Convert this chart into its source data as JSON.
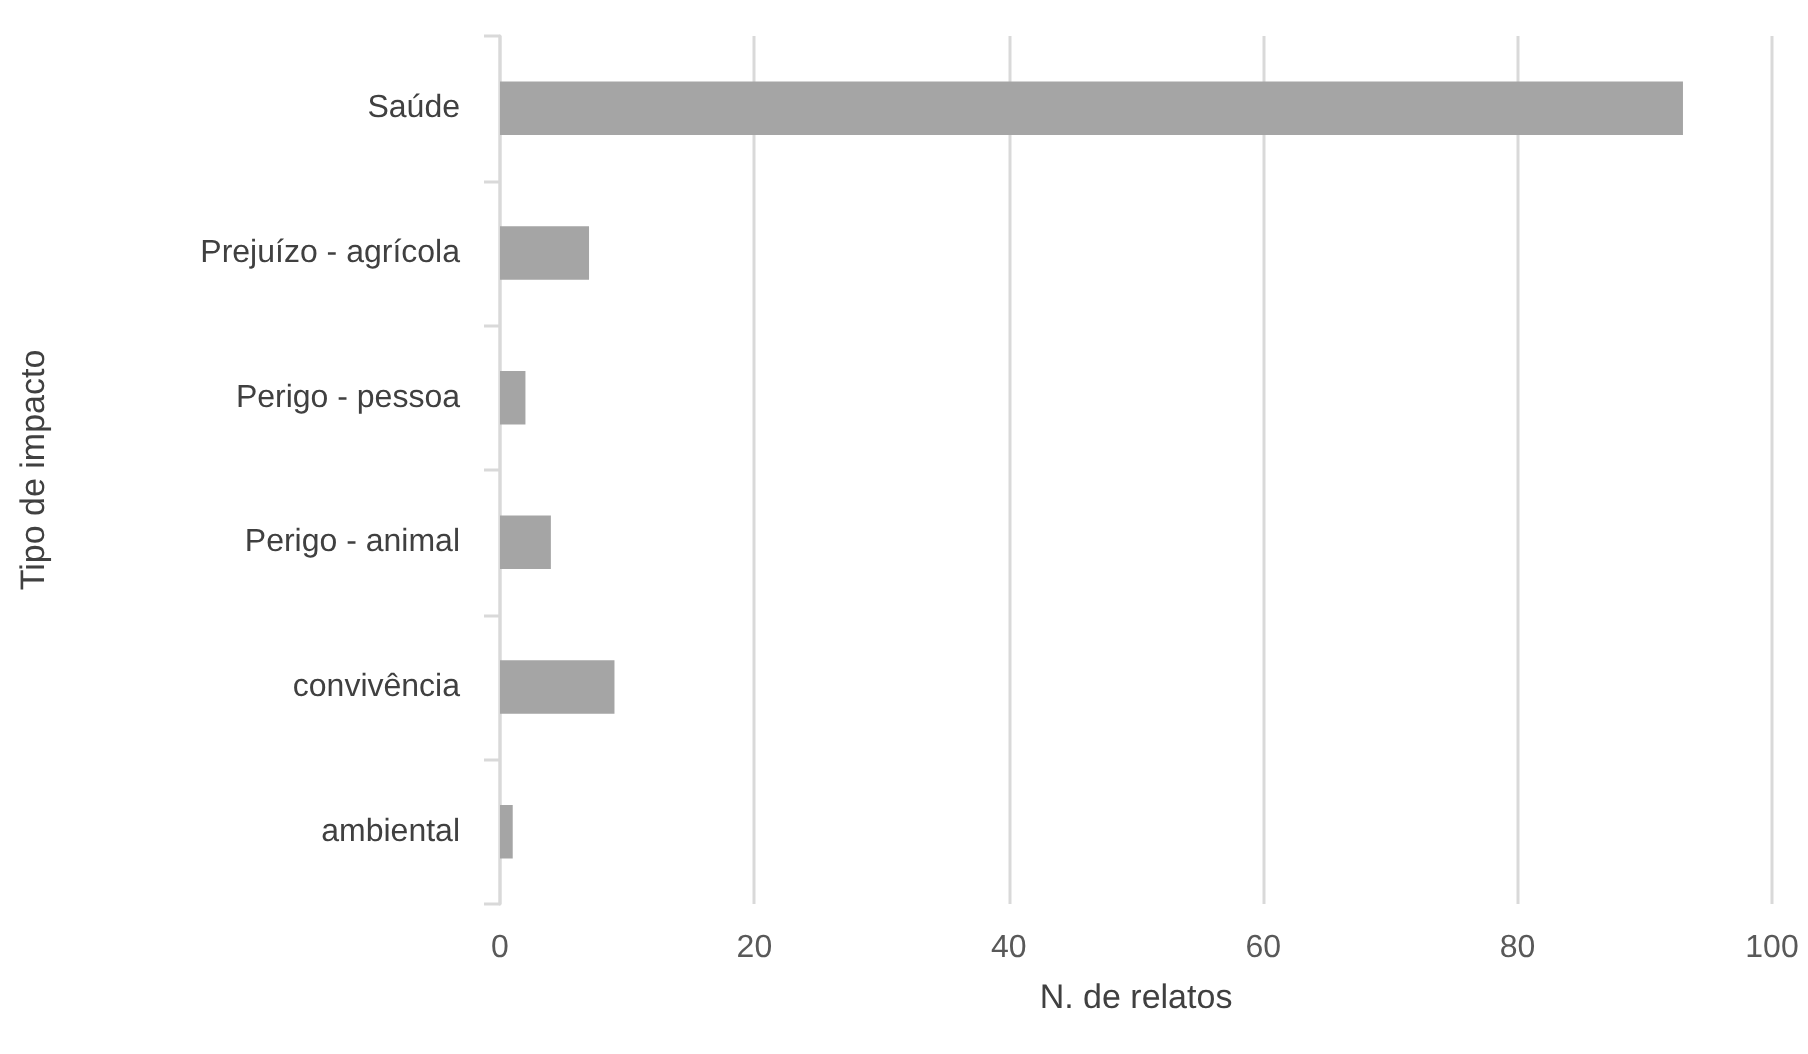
{
  "chart_data": {
    "type": "bar",
    "orientation": "horizontal",
    "xlabel": "N. de relatos",
    "ylabel": "Tipo de impacto",
    "categories": [
      "Saúde",
      "Prejuízo - agrícola",
      "Perigo - pessoa",
      "Perigo - animal",
      "convivência",
      "ambiental"
    ],
    "values": [
      93,
      7,
      2,
      4,
      9,
      1
    ],
    "color": "#a5a5a5",
    "xlim": [
      0,
      100
    ],
    "xticks": [
      0,
      20,
      40,
      60,
      80,
      100
    ],
    "grid": "x"
  }
}
